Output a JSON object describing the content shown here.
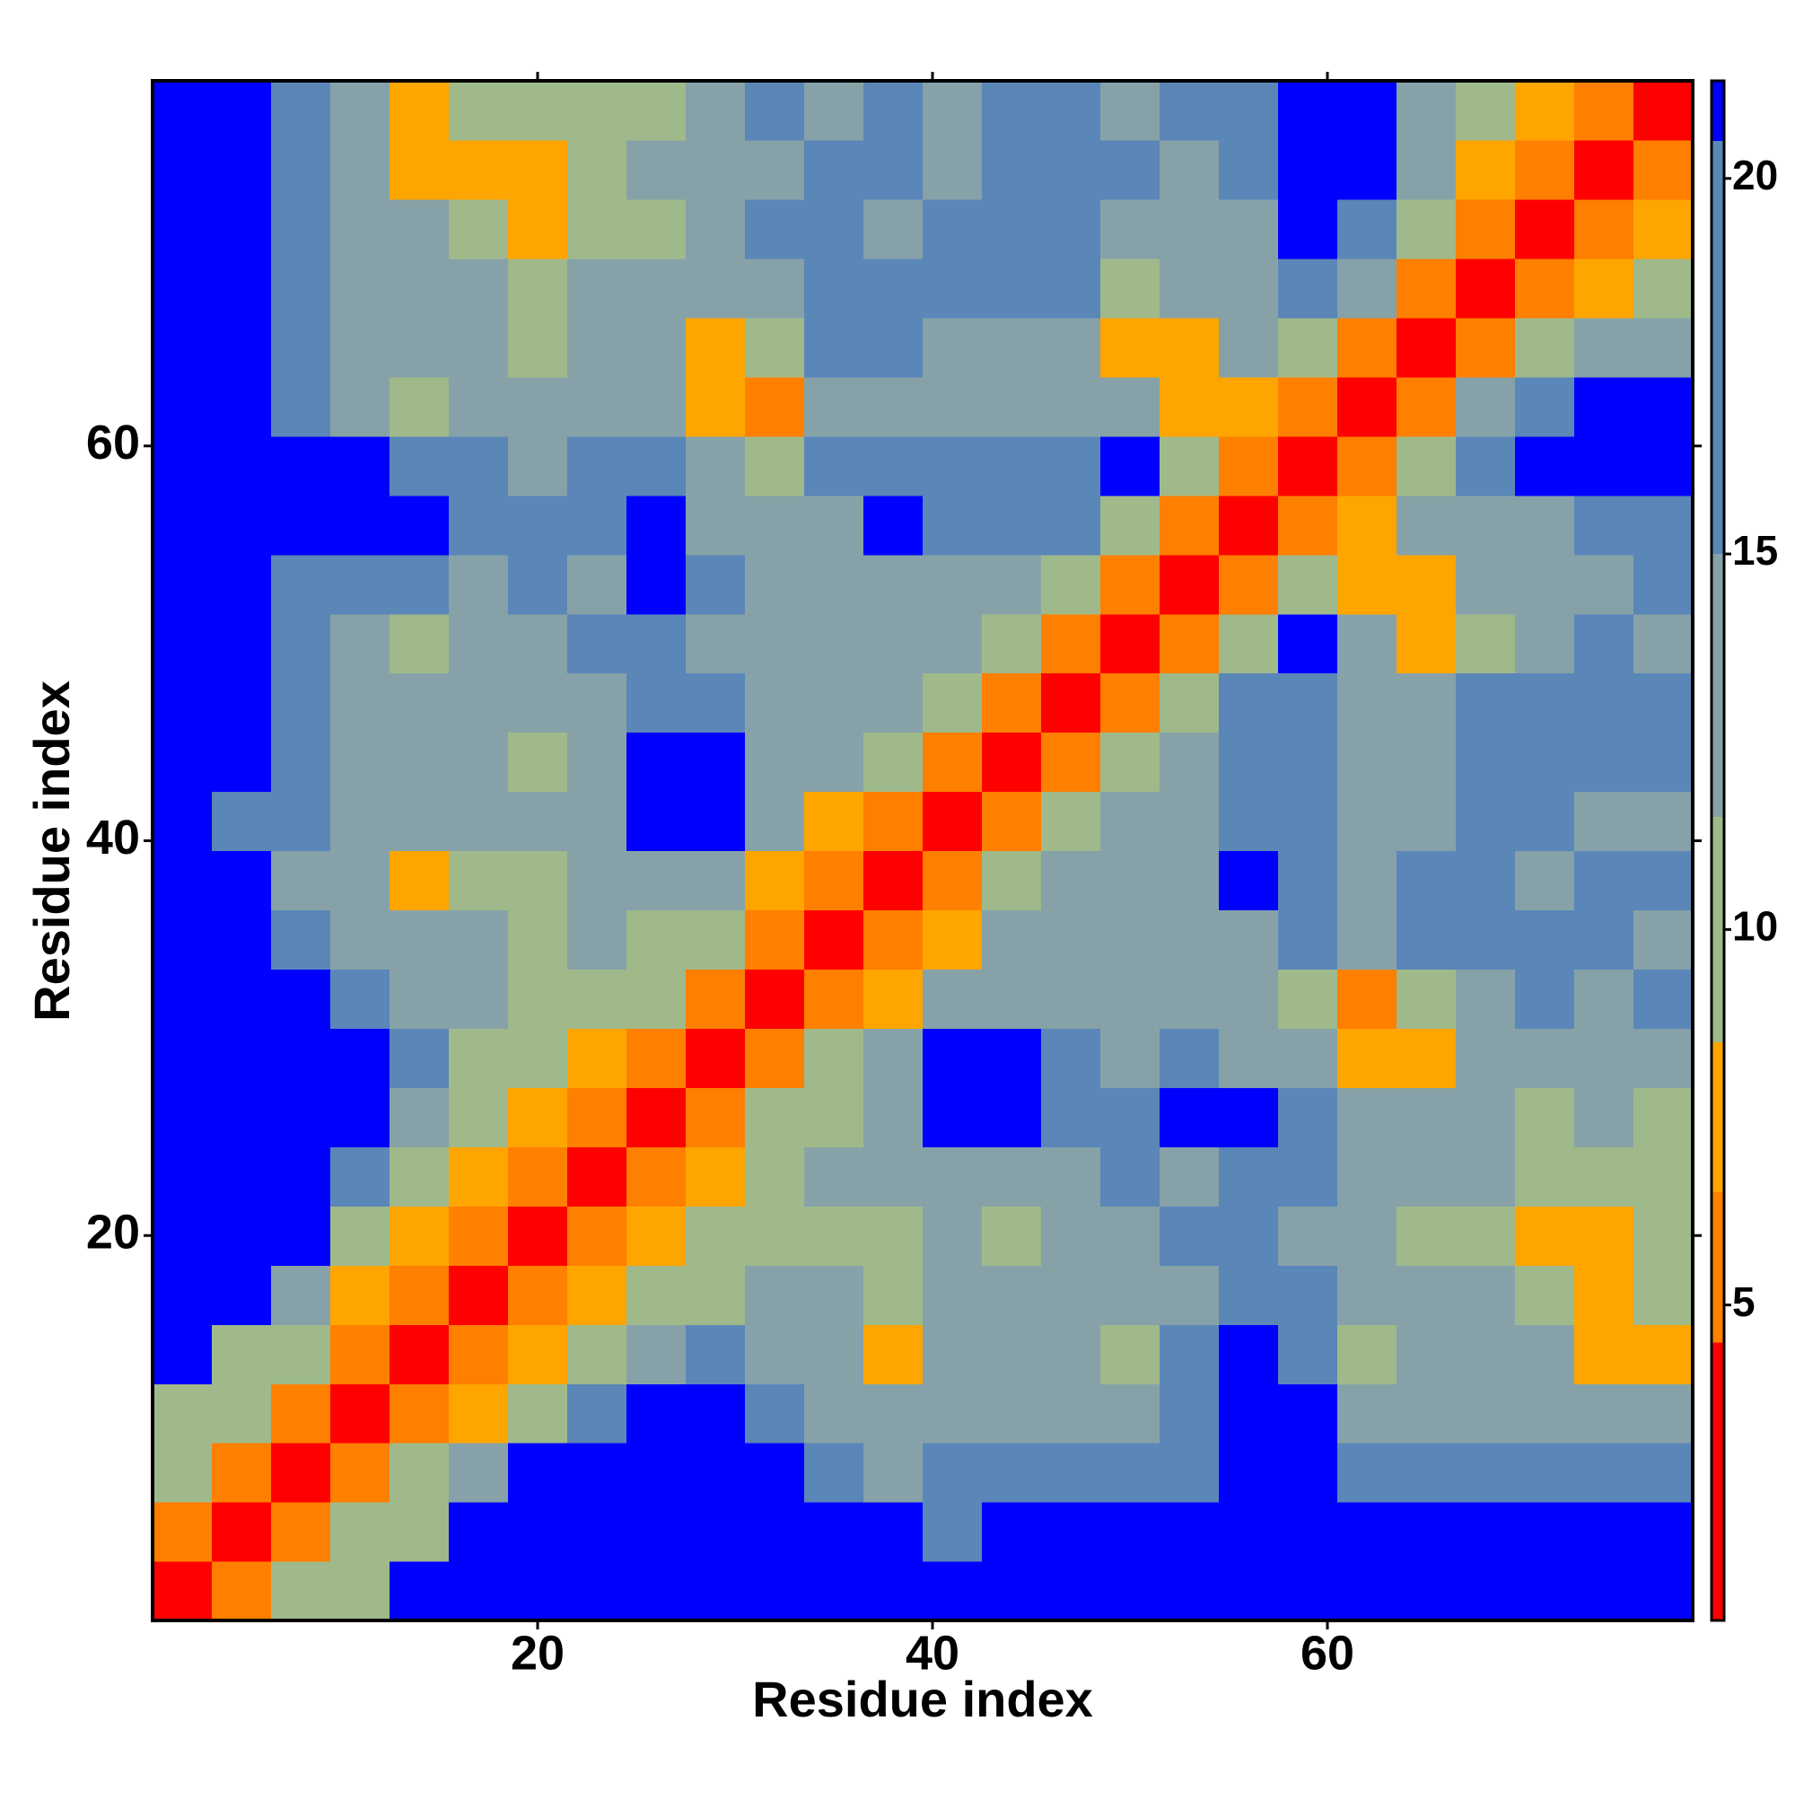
{
  "chart_data": {
    "type": "heatmap",
    "x_label": "Residue index",
    "y_label": "Residue index",
    "x": [
      2,
      5,
      8,
      11,
      14,
      17,
      20,
      23,
      26,
      29,
      32,
      35,
      38,
      41,
      44,
      47,
      50,
      53,
      56,
      59,
      62,
      65,
      68,
      71,
      74,
      77
    ],
    "y": [
      2,
      5,
      8,
      11,
      14,
      17,
      20,
      23,
      26,
      29,
      32,
      35,
      38,
      41,
      44,
      47,
      50,
      53,
      56,
      59,
      62,
      65,
      68,
      71,
      74,
      77
    ],
    "xlim": [
      0.5,
      78.5
    ],
    "ylim": [
      0.5,
      78.5
    ],
    "xticks": [
      20,
      40,
      60
    ],
    "yticks": [
      20,
      40,
      60
    ],
    "zlim": [
      0.8,
      21.3
    ],
    "zticks": [
      5,
      10,
      15,
      20
    ],
    "colorscale": [
      {
        "upto": 4.5,
        "color": "#ff0000"
      },
      {
        "upto": 6.5,
        "color": "#ff7f00"
      },
      {
        "upto": 8.5,
        "color": "#ffa500"
      },
      {
        "upto": 11.5,
        "color": "#a0b98a"
      },
      {
        "upto": 15,
        "color": "#86a2a8"
      },
      {
        "upto": 20.5,
        "color": "#5a86b8"
      },
      {
        "upto": 21.3,
        "color": "#0000ff"
      }
    ],
    "z": [
      [
        3,
        6,
        9,
        10,
        21,
        21,
        21,
        21,
        21,
        21,
        21,
        21,
        21,
        21,
        21,
        21,
        21,
        21,
        21,
        21,
        21,
        21,
        21,
        21,
        21,
        21
      ],
      [
        6,
        3,
        6,
        10,
        11,
        21,
        21,
        21,
        21,
        21,
        21,
        21,
        21,
        17,
        21,
        21,
        21,
        21,
        21,
        21,
        21,
        21,
        21,
        21,
        21,
        21
      ],
      [
        9,
        6,
        3,
        6,
        9,
        12,
        21,
        21,
        21,
        21,
        21,
        19,
        15,
        16,
        17,
        19,
        16,
        18,
        21,
        21,
        18,
        17,
        18,
        17,
        18,
        16
      ],
      [
        10,
        10,
        6,
        3,
        6,
        8,
        10,
        19,
        21,
        21,
        17,
        15,
        12,
        14,
        15,
        12,
        14,
        16,
        21,
        21,
        15,
        14,
        13,
        14,
        13,
        12
      ],
      [
        21,
        11,
        9,
        6,
        3,
        6,
        8,
        10,
        15,
        16,
        15,
        13,
        8,
        14,
        15,
        14,
        9,
        16,
        21,
        18,
        9,
        14,
        13,
        12,
        7,
        8
      ],
      [
        21,
        21,
        12,
        8,
        6,
        3,
        6,
        8,
        9,
        11,
        13,
        12,
        9,
        14,
        15,
        13,
        14,
        14,
        17,
        18,
        14,
        13,
        12,
        11,
        8,
        10
      ],
      [
        21,
        21,
        21,
        10,
        8,
        6,
        3,
        6,
        8,
        10,
        11,
        9,
        9,
        12,
        11,
        13,
        14,
        16,
        17,
        14,
        12,
        9,
        11,
        8,
        7,
        9
      ],
      [
        21,
        21,
        21,
        19,
        10,
        8,
        6,
        3,
        6,
        8,
        11,
        12,
        13,
        14,
        15,
        14,
        16,
        15,
        17,
        18,
        14,
        13,
        12,
        9,
        9,
        10
      ],
      [
        21,
        21,
        21,
        21,
        15,
        9,
        8,
        6,
        3,
        6,
        9,
        11,
        13,
        21,
        21,
        19,
        17,
        21,
        21,
        19,
        15,
        13,
        12,
        11,
        12,
        11
      ],
      [
        21,
        21,
        21,
        21,
        16,
        11,
        10,
        8,
        6,
        3,
        6,
        9,
        12,
        21,
        21,
        17,
        15,
        16,
        14,
        13,
        7,
        7,
        12,
        13,
        14,
        15
      ],
      [
        21,
        21,
        21,
        17,
        15,
        13,
        11,
        11,
        9,
        6,
        3,
        6,
        8,
        13,
        14,
        15,
        13,
        13,
        12,
        11,
        6,
        9,
        13,
        17,
        15,
        19
      ],
      [
        21,
        21,
        19,
        15,
        13,
        12,
        9,
        12,
        11,
        9,
        6,
        3,
        6,
        8,
        13,
        15,
        13,
        14,
        15,
        16,
        14,
        16,
        19,
        18,
        17,
        15
      ],
      [
        21,
        21,
        15,
        12,
        8,
        9,
        9,
        13,
        13,
        12,
        8,
        6,
        3,
        6,
        11,
        15,
        14,
        15,
        21,
        16,
        14,
        19,
        17,
        15,
        19,
        16
      ],
      [
        21,
        17,
        16,
        14,
        14,
        14,
        12,
        14,
        21,
        21,
        13,
        8,
        6,
        3,
        6,
        9,
        13,
        14,
        19,
        18,
        14,
        15,
        19,
        16,
        15,
        15
      ],
      [
        21,
        21,
        17,
        15,
        15,
        15,
        11,
        15,
        21,
        21,
        14,
        13,
        11,
        6,
        3,
        6,
        10,
        14,
        19,
        18,
        15,
        14,
        19,
        16,
        19,
        17
      ],
      [
        21,
        21,
        19,
        12,
        14,
        13,
        13,
        14,
        19,
        17,
        15,
        15,
        15,
        9,
        6,
        3,
        6,
        9,
        19,
        20,
        15,
        14,
        16,
        17,
        18,
        18
      ],
      [
        21,
        21,
        16,
        14,
        9,
        14,
        14,
        16,
        17,
        15,
        13,
        13,
        14,
        13,
        10,
        6,
        3,
        6,
        10,
        21,
        12,
        7,
        10,
        13,
        16,
        15
      ],
      [
        21,
        21,
        18,
        16,
        16,
        14,
        16,
        15,
        21,
        16,
        13,
        14,
        15,
        14,
        14,
        9,
        6,
        3,
        6,
        9,
        7,
        7,
        12,
        14,
        15,
        16
      ],
      [
        21,
        21,
        21,
        21,
        21,
        17,
        17,
        17,
        21,
        14,
        12,
        15,
        21,
        19,
        19,
        19,
        10,
        6,
        3,
        6,
        7,
        12,
        14,
        15,
        16,
        17
      ],
      [
        21,
        21,
        21,
        21,
        18,
        18,
        14,
        18,
        19,
        13,
        11,
        16,
        16,
        18,
        18,
        20,
        21,
        9,
        6,
        3,
        6,
        11,
        19,
        21,
        21,
        21
      ],
      [
        21,
        21,
        18,
        15,
        9,
        14,
        12,
        14,
        15,
        7,
        6,
        14,
        14,
        14,
        15,
        15,
        12,
        7,
        7,
        6,
        3,
        6,
        12,
        20,
        21,
        21
      ],
      [
        21,
        21,
        17,
        14,
        14,
        13,
        9,
        13,
        13,
        7,
        9,
        16,
        19,
        15,
        14,
        14,
        7,
        7,
        12,
        11,
        6,
        3,
        6,
        9,
        13,
        15
      ],
      [
        21,
        21,
        18,
        13,
        13,
        12,
        11,
        12,
        12,
        12,
        13,
        19,
        17,
        19,
        19,
        16,
        10,
        12,
        14,
        19,
        12,
        6,
        3,
        6,
        8,
        11
      ],
      [
        21,
        21,
        17,
        14,
        12,
        11,
        8,
        9,
        11,
        13,
        17,
        18,
        15,
        16,
        16,
        17,
        13,
        14,
        15,
        21,
        20,
        9,
        6,
        3,
        6,
        7
      ],
      [
        21,
        21,
        18,
        13,
        7,
        8,
        7,
        9,
        12,
        14,
        15,
        17,
        19,
        15,
        19,
        18,
        16,
        15,
        16,
        21,
        21,
        13,
        8,
        6,
        3,
        6
      ],
      [
        21,
        21,
        16,
        12,
        8,
        10,
        9,
        10,
        11,
        15,
        19,
        15,
        16,
        15,
        17,
        18,
        15,
        16,
        17,
        21,
        21,
        15,
        11,
        7,
        6,
        3
      ]
    ]
  }
}
